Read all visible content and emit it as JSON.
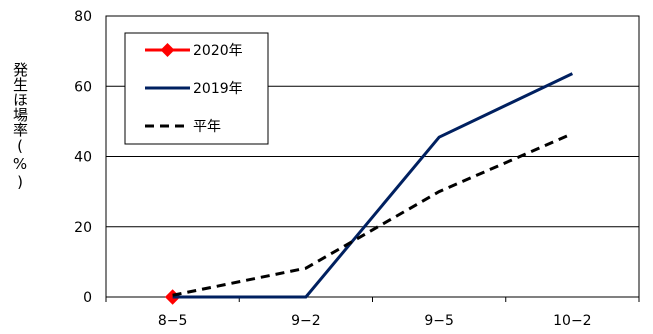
{
  "chart_data": {
    "type": "line",
    "categories": [
      "8−5",
      "9−2",
      "9−5",
      "10−2"
    ],
    "ylabel": "発生ほ場率(%)",
    "ylim": [
      0,
      80
    ],
    "yticks": [
      0,
      20,
      40,
      60,
      80
    ],
    "grid": true,
    "legend_position": "top-left",
    "series": [
      {
        "name": "2020年",
        "values": [
          0,
          null,
          null,
          null
        ],
        "color": "#ff0000",
        "style": "solid",
        "marker": "diamond"
      },
      {
        "name": "2019年",
        "values": [
          0,
          0,
          45.5,
          63.6
        ],
        "color": "#002060",
        "style": "solid",
        "marker": "none"
      },
      {
        "name": "平年",
        "values": [
          0.5,
          8.2,
          30.0,
          46.5
        ],
        "color": "#000000",
        "style": "dashed",
        "marker": "none"
      }
    ]
  }
}
